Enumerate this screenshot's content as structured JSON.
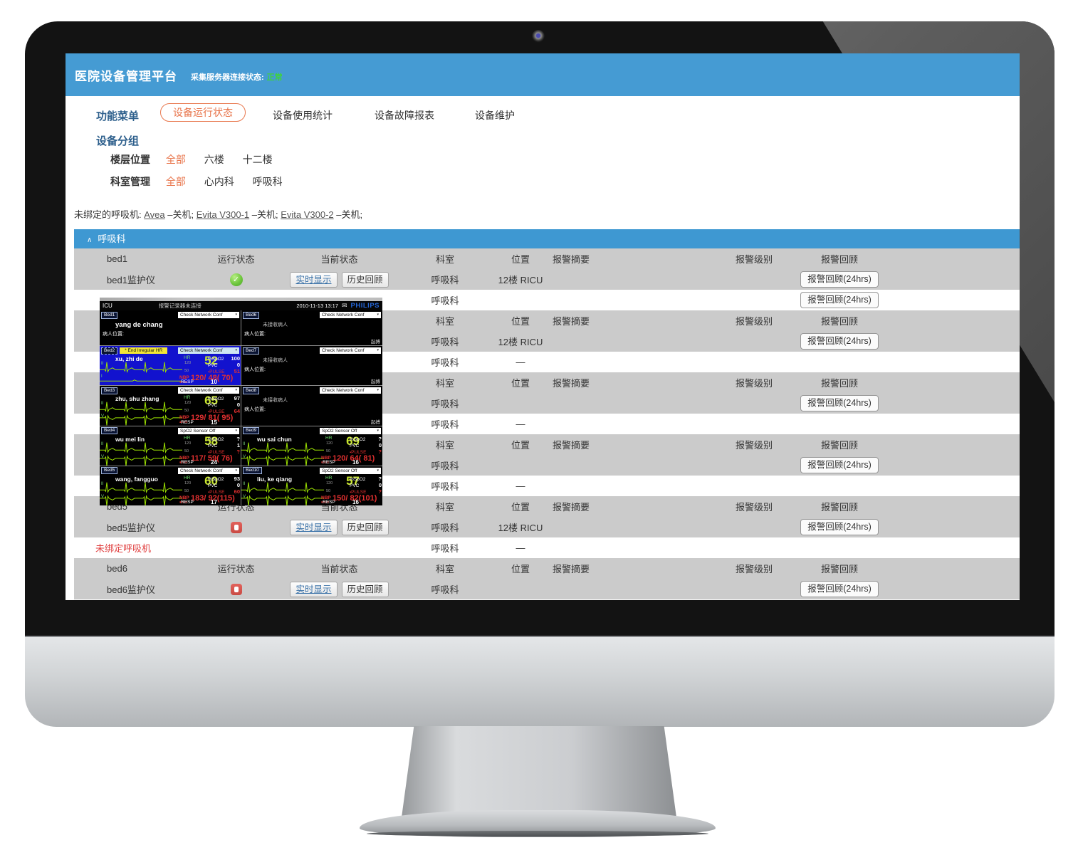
{
  "colors": {
    "header_bg": "#459BD3",
    "section_bar_bg": "#3E98D2",
    "accent_orange": "#E8744A",
    "nav_blue": "#2D5F8C",
    "status_ok_green": "#3FD23F",
    "row_gray": "#CBCBCB",
    "link_blue": "#3A72A8",
    "alert_red": "#E04040",
    "monitor_alarm_blue": "#1212CE",
    "ecg_green": "#9DE300",
    "hr_green": "#C8E62E",
    "vitals_red": "#E23030",
    "philips_blue": "#2566D8"
  },
  "header": {
    "title": "医院设备管理平台",
    "server_status_label": "采集服务器连接状态:",
    "server_status_value": "正常"
  },
  "nav": {
    "items": [
      {
        "label": "功能菜单"
      },
      {
        "label": "设备运行状态",
        "active": true
      },
      {
        "label": "设备使用统计"
      },
      {
        "label": "设备故障报表"
      },
      {
        "label": "设备维护"
      }
    ]
  },
  "filters": {
    "group_title": "设备分组",
    "rows": [
      {
        "label": "楼层位置",
        "options": [
          {
            "label": "全部",
            "active": true
          },
          {
            "label": "六楼"
          },
          {
            "label": "十二楼"
          }
        ]
      },
      {
        "label": "科室管理",
        "options": [
          {
            "label": "全部",
            "active": true
          },
          {
            "label": "心内科"
          },
          {
            "label": "呼吸科"
          }
        ]
      }
    ]
  },
  "unbound": {
    "prefix": "未绑定的呼吸机: ",
    "items": [
      {
        "name": "Avea",
        "suffix": " –关机; "
      },
      {
        "name": "Evita V300-1",
        "suffix": " –关机; "
      },
      {
        "name": "Evita V300-2",
        "suffix": " –关机;"
      }
    ]
  },
  "section": {
    "caret": "∧",
    "title": "呼吸科"
  },
  "table": {
    "buttons": {
      "realtime": "实时显示",
      "history": "历史回顾",
      "review": "报警回顾(24hrs)"
    },
    "rows": [
      {
        "t": "head",
        "c1": "bed1",
        "c2": "运行状态",
        "c3": "当前状态",
        "c4": "科室",
        "c5": "位置",
        "c6": "报警摘要",
        "c7": "报警级别",
        "c8": "报警回顾"
      },
      {
        "t": "dev",
        "c1": "bed1监护仪",
        "icon": "ok",
        "btns": true,
        "c4": "呼吸科",
        "c5": "12楼 RICU",
        "review": true
      },
      {
        "t": "plain",
        "c1": "",
        "c4": "呼吸科",
        "c5": "",
        "review": true
      },
      {
        "t": "head",
        "c1": "",
        "c2": "",
        "c3": "",
        "c4": "科室",
        "c5": "位置",
        "c6": "报警摘要",
        "c7": "报警级别",
        "c8": "报警回顾"
      },
      {
        "t": "dev",
        "c1": "",
        "icon": "",
        "btns": false,
        "c4": "呼吸科",
        "c5": "12楼 RICU",
        "review": true
      },
      {
        "t": "plain",
        "c1": "",
        "c4": "呼吸科",
        "c5": "—"
      },
      {
        "t": "head",
        "c1": "",
        "c2": "",
        "c3": "",
        "c4": "科室",
        "c5": "位置",
        "c6": "报警摘要",
        "c7": "报警级别",
        "c8": "报警回顾"
      },
      {
        "t": "dev",
        "c1": "",
        "icon": "",
        "btns": false,
        "c4": "呼吸科",
        "c5": "",
        "review": true
      },
      {
        "t": "plain",
        "c1": "",
        "c4": "呼吸科",
        "c5": "—"
      },
      {
        "t": "head",
        "c1": "",
        "c2": "",
        "c3": "",
        "c4": "科室",
        "c5": "位置",
        "c6": "报警摘要",
        "c7": "报警级别",
        "c8": "报警回顾"
      },
      {
        "t": "dev",
        "c1": "",
        "icon": "",
        "btns": false,
        "c4": "呼吸科",
        "c5": "",
        "review": true
      },
      {
        "t": "plain",
        "c1": "",
        "c4": "呼吸科",
        "c5": "—"
      },
      {
        "t": "head",
        "c1": "bed5",
        "c2": "运行状态",
        "c3": "当前状态",
        "c4": "科室",
        "c5": "位置",
        "c6": "报警摘要",
        "c7": "报警级别",
        "c8": "报警回顾"
      },
      {
        "t": "dev",
        "c1": "bed5监护仪",
        "icon": "stop",
        "btns": true,
        "c4": "呼吸科",
        "c5": "12楼 RICU",
        "review": true
      },
      {
        "t": "plain",
        "c1": "未绑定呼吸机",
        "red": true,
        "c4": "呼吸科",
        "c5": "—"
      },
      {
        "t": "head",
        "c1": "bed6",
        "c2": "运行状态",
        "c3": "当前状态",
        "c4": "科室",
        "c5": "位置",
        "c6": "报警摘要",
        "c7": "报警级别",
        "c8": "报警回顾"
      },
      {
        "t": "dev",
        "c1": "bed6监护仪",
        "icon": "stop",
        "btns": true,
        "c4": "呼吸科",
        "c5": "",
        "review": true
      }
    ]
  },
  "monitor": {
    "top": {
      "unit": "ICU",
      "message": "报警记录器未连接",
      "datetime": "2010-11-13 13:17",
      "brand": "PHILIPS"
    },
    "labels": {
      "hr": "HR",
      "hr_hi": "120",
      "hr_lo": "50",
      "spo2": "%SpO2",
      "pvc": "PVC",
      "pulse": "PULSE",
      "nbp": "NBP",
      "nbp_time": "13:00",
      "resp": "RESP",
      "no_patient": "未接收病人",
      "loc": "病人位置:",
      "pace": "起搏",
      "conf_arrow": "▾"
    },
    "beds": [
      {
        "id": "Bed1",
        "conf": "Check Network Conf",
        "type": "named",
        "name": "yang de chang",
        "big": true
      },
      {
        "id": "Bed6",
        "conf": "Check Network Conf",
        "type": "empty",
        "pace": true,
        "big": true
      },
      {
        "id": "Bed2",
        "conf": "Check Network Conf",
        "alarm": "* End Irregular HR",
        "type": "vitals",
        "blue": true,
        "name": "xu, zhi de",
        "leads": [
          "II",
          "I"
        ],
        "flat2": true,
        "hr": "52",
        "spo2": "100",
        "pvc": "0",
        "pulse": "51",
        "nbp": "120/ 48( 70)",
        "resp": "10"
      },
      {
        "id": "Bed7",
        "conf": "Check Network Conf",
        "type": "empty",
        "pace": true
      },
      {
        "id": "Bed3",
        "conf": "Check Network Conf",
        "type": "vitals",
        "name": "zhu, shu zhang",
        "leads": [
          "II",
          "V"
        ],
        "hr": "65",
        "spo2": "97",
        "pvc": "0",
        "pulse": "64",
        "nbp": "129/ 81( 95)",
        "resp": "15"
      },
      {
        "id": "Bed8",
        "conf": "Check Network Conf",
        "type": "empty",
        "pace": true
      },
      {
        "id": "Bed4",
        "conf": "SpO2   Sensor Off",
        "type": "vitals",
        "name": "wu mei lin",
        "leads": [
          "II",
          "V"
        ],
        "hr": "58",
        "spo2": "?",
        "pvc": "1",
        "pulse": "?",
        "nbp": "117/ 59( 76)",
        "resp": "24"
      },
      {
        "id": "Bed9",
        "conf": "SpO2   Sensor Off",
        "type": "vitals",
        "name": "wu sai chun",
        "leads": [
          "II",
          "V"
        ],
        "hr": "69",
        "spo2": "?",
        "pvc": "0",
        "pulse": "?",
        "nbp": "120/ 64( 81)",
        "resp": "16"
      },
      {
        "id": "Bed5",
        "conf": "Check Network Conf",
        "type": "vitals",
        "name": "wang, fangguo",
        "leads": [
          "II",
          "V"
        ],
        "hr": "60",
        "spo2": "93",
        "pvc": "0",
        "pulse": "60",
        "nbp": "183/ 92(115)",
        "resp": "17"
      },
      {
        "id": "Bed10",
        "conf": "SpO2   Sensor Off",
        "type": "vitals",
        "name": "liu, ke qiang",
        "leads": [
          "II",
          "V"
        ],
        "hr": "57",
        "spo2": "?",
        "pvc": "0",
        "pulse": "?",
        "nbp": "150/ 82(101)",
        "resp": "16"
      }
    ]
  }
}
